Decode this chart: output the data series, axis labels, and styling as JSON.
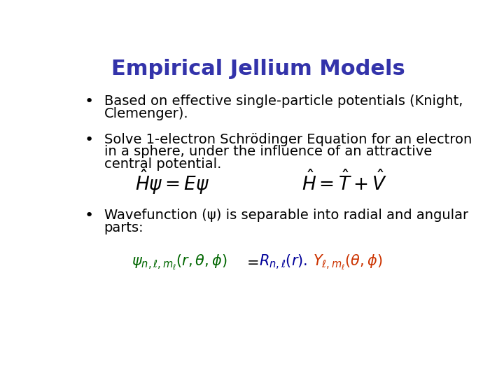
{
  "title": "Empirical Jellium Models",
  "title_color": "#3333aa",
  "title_fontsize": 22,
  "bg_color": "#ffffff",
  "bullet_color": "#000000",
  "bullet_fontsize": 14,
  "bullet1_line1": "Based on effective single-particle potentials (Knight,",
  "bullet1_line2": "Clemenger).",
  "bullet2_line1": "Solve 1-electron Schrödinger Equation for an electron",
  "bullet2_line2": "in a sphere, under the influence of an attractive",
  "bullet2_line3": "central potential.",
  "bullet3_line1": "Wavefunction (ψ) is separable into radial and angular",
  "bullet3_line2": "parts:",
  "eq_color": "#000000",
  "eq_fontsize": 16,
  "wavefunction_color": "#006600",
  "R_color": "#000099",
  "Y_color": "#cc3300"
}
